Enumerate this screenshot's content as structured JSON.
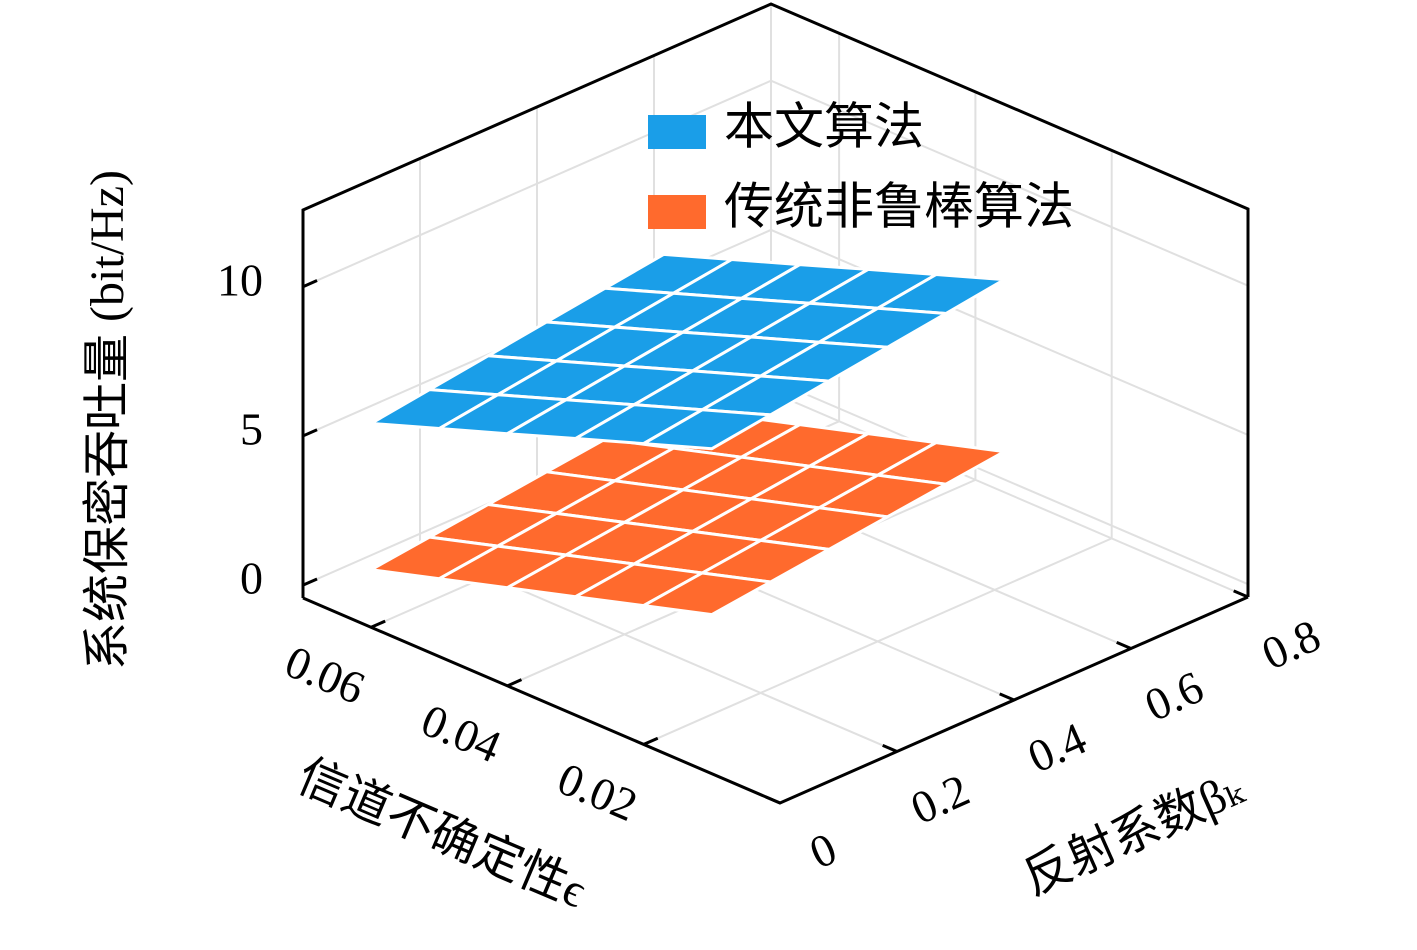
{
  "chart_data": {
    "type": "surface3d",
    "xlabel": "信道不确定性ϵ",
    "ylabel": "反射系数βₖ",
    "zlabel": "系统保密吞吐量 (bit/Hz)",
    "x": [
      0.01,
      0.02,
      0.03,
      0.04,
      0.05,
      0.06
    ],
    "y": [
      0,
      0.1,
      0.2,
      0.3,
      0.4,
      0.5
    ],
    "xlim": [
      0,
      0.07
    ],
    "xticks": [
      0.02,
      0.04,
      0.06
    ],
    "ylim": [
      0,
      0.8
    ],
    "yticks": [
      0,
      0.2,
      0.4,
      0.6,
      0.8
    ],
    "zlim": [
      -0.43,
      12.57
    ],
    "zticks": [
      0,
      5,
      10
    ],
    "grid": true,
    "legend": "top",
    "series": [
      {
        "name": "传统非鲁棒算法",
        "color": "#ff6a2d",
        "values": [
          [
            4.9,
            5.13,
            5.36,
            5.59,
            5.82,
            6.05
          ],
          [
            4.22,
            4.45,
            4.68,
            4.91,
            5.14,
            5.37
          ],
          [
            3.54,
            3.77,
            4.0,
            4.23,
            4.46,
            4.69
          ],
          [
            2.86,
            3.09,
            3.32,
            3.55,
            3.78,
            4.01
          ],
          [
            2.18,
            2.41,
            2.64,
            2.87,
            3.1,
            3.33
          ],
          [
            1.5,
            1.73,
            1.96,
            2.19,
            2.42,
            2.65
          ]
        ]
      },
      {
        "name": "本文算法",
        "color": "#1a9ee8",
        "values": [
          [
            10.46,
            10.73,
            11.0,
            11.27,
            11.54,
            11.81
          ],
          [
            9.65,
            9.92,
            10.19,
            10.46,
            10.73,
            11.0
          ],
          [
            8.84,
            9.11,
            9.38,
            9.65,
            9.92,
            10.19
          ],
          [
            8.02,
            8.29,
            8.56,
            8.83,
            9.1,
            9.37
          ],
          [
            7.21,
            7.48,
            7.75,
            8.02,
            8.29,
            8.56
          ],
          [
            6.4,
            6.67,
            6.94,
            7.21,
            7.48,
            7.75
          ]
        ]
      }
    ]
  }
}
